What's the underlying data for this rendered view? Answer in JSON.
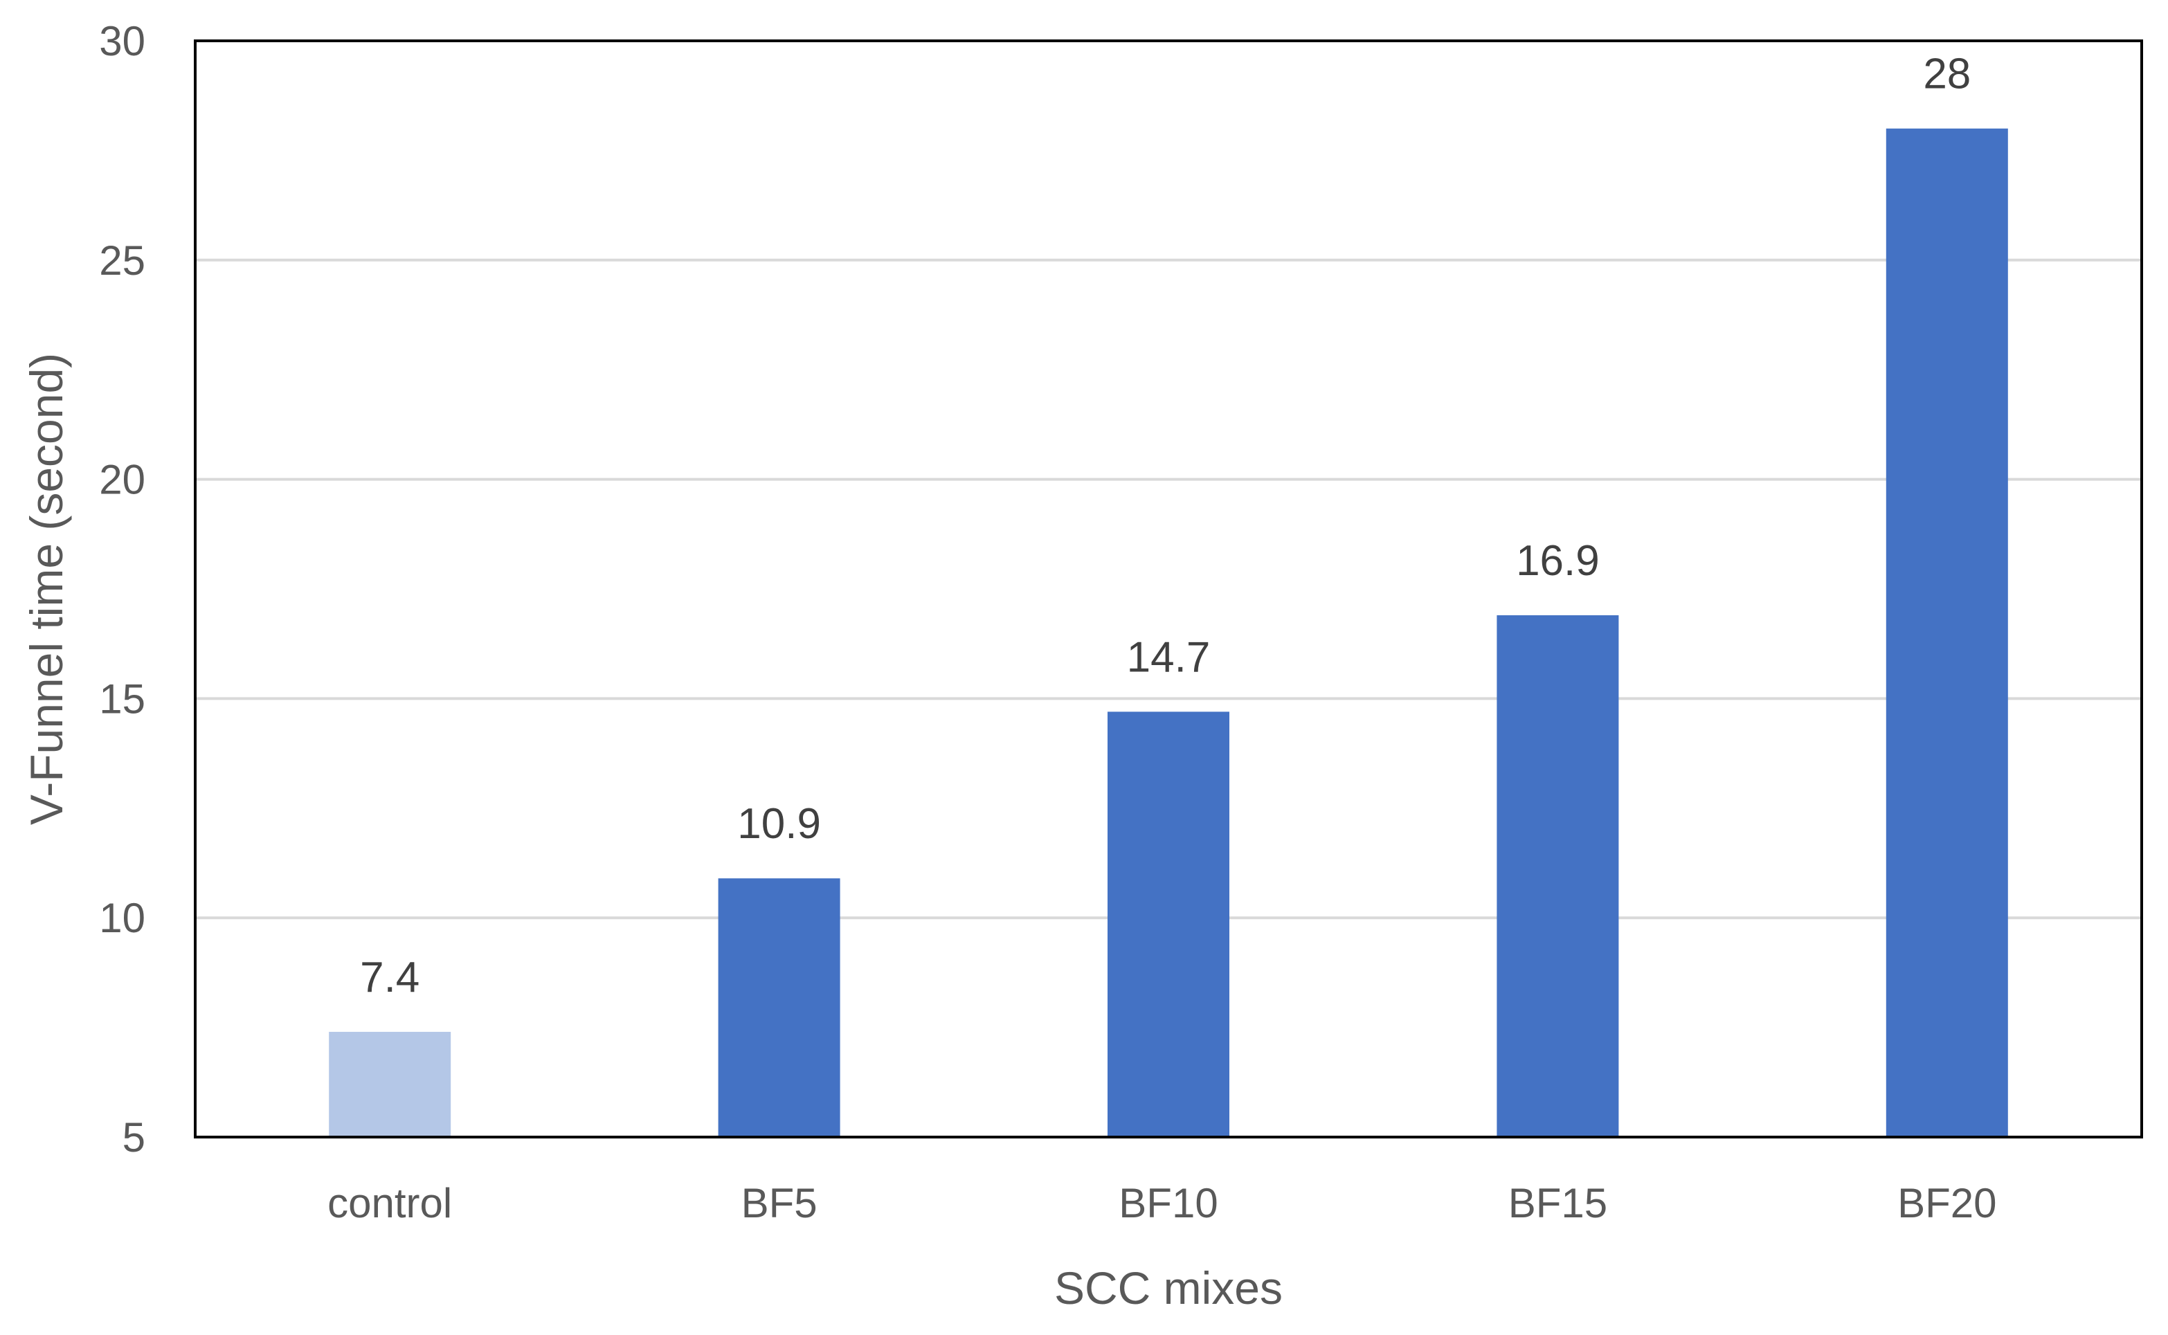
{
  "chart_data": {
    "type": "bar",
    "title": "",
    "xlabel": "SCC mixes",
    "ylabel": "V-Funnel time (second)",
    "categories": [
      "control",
      "BF5",
      "BF10",
      "BF15",
      "BF20"
    ],
    "values": [
      7.4,
      10.9,
      14.7,
      16.9,
      28
    ],
    "data_labels": [
      "7.4",
      "10.9",
      "14.7",
      "16.9",
      "28"
    ],
    "ylim": [
      5,
      30
    ],
    "yticks": [
      5,
      10,
      15,
      20,
      25,
      30
    ],
    "grid": true,
    "legend": "none",
    "colors": {
      "highlight": "#b4c7e7",
      "default": "#4472c4"
    },
    "bar_colors": [
      "#b4c7e7",
      "#4472c4",
      "#4472c4",
      "#4472c4",
      "#4472c4"
    ]
  }
}
